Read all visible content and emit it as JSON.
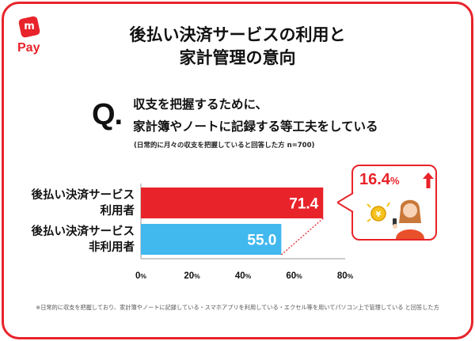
{
  "logo": {
    "mark": "m",
    "text": "Pay"
  },
  "title": {
    "line1": "後払い決済サービスの利用と",
    "line2": "家計管理の意向"
  },
  "question": {
    "mark": "Q.",
    "line1": "収支を把握するために、",
    "line2": "家計簿やノートに記録する等工夫をしている",
    "sample_note": "(日常的に月々の収支を把握していると回答した方 n=700)"
  },
  "callout": {
    "value": "16.4",
    "unit": "%",
    "icon": "woman-with-coin-and-phone-icon"
  },
  "footnote": "※日常的に収支を把握しており、家計簿やノートに記録している・スマホアプリを利用している・エクセル等を用いてパソコン上で管理している と回答した方",
  "chart_data": {
    "type": "bar",
    "orientation": "horizontal",
    "categories": [
      {
        "line1": "後払い決済サービス",
        "line2": "利用者"
      },
      {
        "line1": "後払い決済サービス",
        "line2": "非利用者"
      }
    ],
    "values": [
      71.4,
      55.0
    ],
    "value_labels": [
      "71.4",
      "55.0"
    ],
    "colors": [
      "#e8232a",
      "#41b8ee"
    ],
    "xlim": [
      0,
      80
    ],
    "ticks": [
      0,
      20,
      40,
      60,
      80
    ],
    "tick_labels": [
      "0",
      "20",
      "40",
      "60",
      "80"
    ],
    "tick_unit": "%",
    "grid": false,
    "difference": 16.4
  }
}
